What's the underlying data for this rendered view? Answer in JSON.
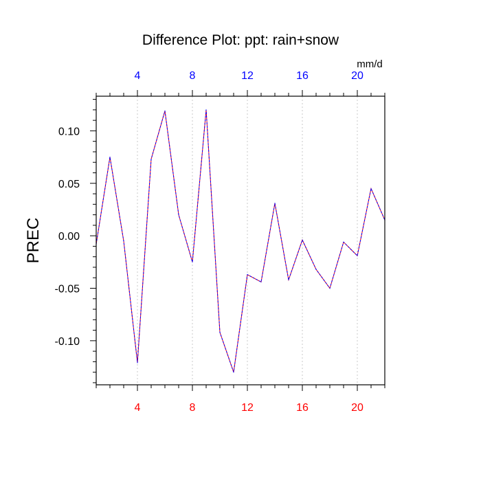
{
  "chart_data": {
    "type": "line",
    "title": "Difference Plot: ppt: rain+snow",
    "ylabel": "PREC",
    "top_axis_unit": "mm/d",
    "xlim": [
      1,
      22
    ],
    "ylim": [
      -0.142,
      0.133
    ],
    "x_ticks": [
      4,
      8,
      12,
      16,
      20
    ],
    "x_tick_labels": [
      "4",
      "8",
      "12",
      "16",
      "20"
    ],
    "y_ticks": [
      0.1,
      0.05,
      0.0,
      -0.05,
      -0.1
    ],
    "y_tick_labels": [
      "0.10",
      "0.05",
      "0.00",
      "-0.05",
      "-0.10"
    ],
    "grid": "vertical dotted at major x ticks",
    "series": [
      {
        "x": [
          1,
          2,
          3,
          4,
          5,
          6,
          7,
          8,
          9,
          10,
          11,
          12,
          13,
          14,
          15,
          16,
          17,
          18,
          19,
          20,
          21,
          22
        ],
        "values": [
          -0.008,
          0.075,
          -0.005,
          -0.121,
          0.073,
          0.119,
          0.02,
          -0.025,
          0.12,
          -0.092,
          -0.13,
          -0.037,
          -0.044,
          0.031,
          -0.042,
          -0.004,
          -0.032,
          -0.05,
          -0.006,
          -0.019,
          0.045,
          0.015
        ]
      }
    ],
    "colors": {
      "line_primary": "#ff0000",
      "line_secondary": "#0000ff",
      "top_axis_labels": "#0000ff",
      "bottom_axis_labels": "#ff0000",
      "grid": "#c8c8c8",
      "frame": "#000000"
    }
  }
}
